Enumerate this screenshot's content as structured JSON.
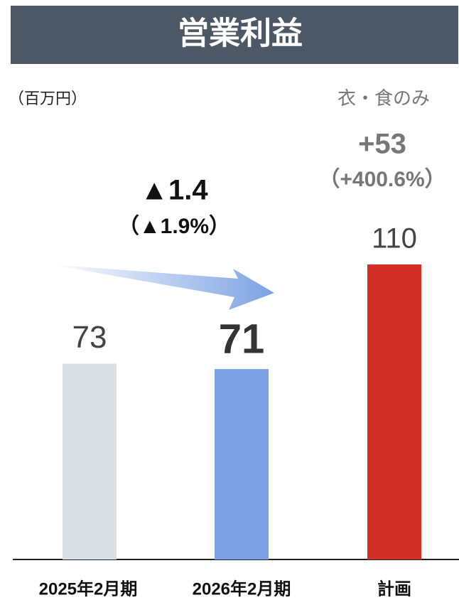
{
  "chart_data": {
    "type": "bar",
    "title": "営業利益",
    "unit": "（百万円）",
    "categories": [
      "2025年2月期",
      "2026年2月期",
      "計画"
    ],
    "values": [
      73,
      71,
      110
    ],
    "colors": [
      "#d9dde4",
      "#7ca2e3",
      "#d22f27"
    ],
    "annotations": {
      "change": "▲1.4",
      "change_pct": "（▲1.9%）",
      "plan_note": "衣・食のみ",
      "plan_change": "+53",
      "plan_change_pct": "（+400.6%）"
    }
  }
}
